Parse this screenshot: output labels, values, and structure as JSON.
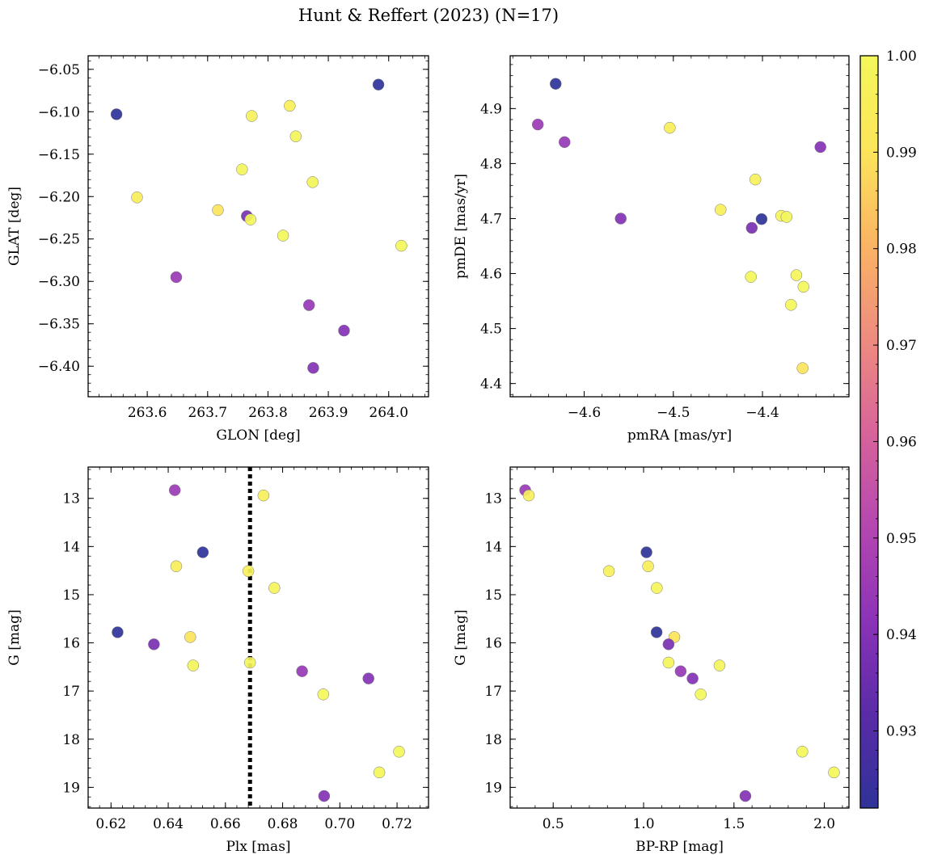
{
  "figure": {
    "title": "Hunt & Reffert (2023) (N=17)"
  },
  "colorbar": {
    "min": 0.922,
    "max": 1.0,
    "ticks": [
      0.93,
      0.94,
      0.95,
      0.96,
      0.97,
      0.98,
      0.99,
      1.0
    ],
    "tick_labels": [
      "0.93",
      "0.94",
      "0.95",
      "0.96",
      "0.97",
      "0.98",
      "0.99",
      "1.00"
    ],
    "colormap": "plasma",
    "colormap_stops": [
      "#2e3399",
      "#5a2ba8",
      "#8b33b8",
      "#b547b0",
      "#d8649a",
      "#ee8c7f",
      "#fbb463",
      "#fce55a",
      "#f3f75a"
    ]
  },
  "stars": {
    "prob": [
      0.922,
      0.922,
      0.99,
      0.945,
      0.944,
      0.94,
      0.94,
      0.938,
      0.995,
      0.996,
      0.997,
      0.998,
      0.999,
      0.999,
      1.0,
      1.0,
      1.0
    ],
    "glon": [
      263.549,
      263.983,
      263.717,
      263.648,
      263.868,
      263.926,
      263.875,
      263.765,
      263.583,
      263.836,
      263.773,
      263.846,
      263.757,
      263.874,
      263.771,
      263.825,
      264.021
    ],
    "glat": [
      -6.103,
      -6.068,
      -6.216,
      -6.295,
      -6.328,
      -6.358,
      -6.402,
      -6.223,
      -6.201,
      -6.093,
      -6.105,
      -6.129,
      -6.168,
      -6.183,
      -6.227,
      -6.246,
      -6.258
    ],
    "pmra": [
      -4.632,
      -4.401,
      -4.355,
      -4.652,
      -4.622,
      -4.559,
      -4.335,
      -4.412,
      -4.504,
      -4.447,
      -4.408,
      -4.379,
      -4.373,
      -4.362,
      -4.368,
      -4.354,
      -4.413
    ],
    "pmde": [
      4.945,
      4.699,
      4.428,
      4.871,
      4.839,
      4.7,
      4.83,
      4.683,
      4.865,
      4.716,
      4.771,
      4.705,
      4.703,
      4.597,
      4.543,
      4.576,
      4.594
    ],
    "plx": [
      0.6521,
      0.6223,
      0.6477,
      0.6423,
      0.6868,
      0.71,
      0.6945,
      0.635,
      0.6428,
      0.6733,
      0.668,
      0.6771,
      0.6487,
      0.6686,
      0.6942,
      0.7138,
      0.7207
    ],
    "gmag": [
      14.12,
      15.78,
      15.88,
      12.83,
      16.59,
      16.74,
      19.18,
      16.03,
      14.41,
      12.94,
      14.51,
      14.86,
      16.47,
      16.41,
      17.07,
      18.69,
      18.26
    ],
    "bprp": [
      1.016,
      1.072,
      1.17,
      0.345,
      1.205,
      1.271,
      1.563,
      1.138,
      1.025,
      0.365,
      0.808,
      1.073,
      1.42,
      1.138,
      1.316,
      2.053,
      1.878
    ]
  },
  "chart_data": [
    {
      "type": "scatter",
      "id": "glon_glat",
      "xkey": "glon",
      "ykey": "glat",
      "xlabel": "GLON [deg]",
      "ylabel": "GLAT [deg]",
      "xlim": [
        263.502,
        264.066
      ],
      "ylim": [
        -6.436,
        -6.034
      ],
      "xticks": [
        263.6,
        263.7,
        263.8,
        263.9,
        264.0
      ],
      "xtick_labels": [
        "263.6",
        "263.7",
        "263.8",
        "263.9",
        "264.0"
      ],
      "yticks": [
        -6.05,
        -6.1,
        -6.15,
        -6.2,
        -6.25,
        -6.3,
        -6.35,
        -6.4
      ],
      "ytick_labels": [
        "−6.05",
        "−6.10",
        "−6.15",
        "−6.20",
        "−6.25",
        "−6.30",
        "−6.35",
        "−6.40"
      ],
      "yinvert": false
    },
    {
      "type": "scatter",
      "id": "pmra_pmde",
      "xkey": "pmra",
      "ykey": "pmde",
      "xlabel": "pmRA [mas/yr]",
      "ylabel": "pmDE [mas/yr]",
      "xlim": [
        -4.683,
        -4.303
      ],
      "ylim": [
        4.376,
        4.996
      ],
      "xticks": [
        -4.6,
        -4.5,
        -4.4
      ],
      "xtick_labels": [
        "−4.6",
        "−4.5",
        "−4.4"
      ],
      "yticks": [
        4.4,
        4.5,
        4.6,
        4.7,
        4.8,
        4.9
      ],
      "ytick_labels": [
        "4.4",
        "4.5",
        "4.6",
        "4.7",
        "4.8",
        "4.9"
      ],
      "yinvert": false
    },
    {
      "type": "scatter",
      "id": "plx_g",
      "xkey": "plx",
      "ykey": "gmag",
      "xlabel": "Plx [mas]",
      "ylabel": "G [mag]",
      "xlim": [
        0.612,
        0.731
      ],
      "ylim": [
        12.35,
        19.43
      ],
      "xticks": [
        0.62,
        0.64,
        0.66,
        0.68,
        0.7,
        0.72
      ],
      "xtick_labels": [
        "0.62",
        "0.64",
        "0.66",
        "0.68",
        "0.70",
        "0.72"
      ],
      "yticks": [
        13,
        14,
        15,
        16,
        17,
        18,
        19
      ],
      "ytick_labels": [
        "13",
        "14",
        "15",
        "16",
        "17",
        "18",
        "19"
      ],
      "yinvert": true,
      "vline": 0.6686
    },
    {
      "type": "scatter",
      "id": "bprp_g",
      "xkey": "bprp",
      "ykey": "gmag",
      "xlabel": "BP-RP [mag]",
      "ylabel": "G [mag]",
      "xlim": [
        0.262,
        2.136
      ],
      "ylim": [
        12.35,
        19.43
      ],
      "xticks": [
        0.5,
        1.0,
        1.5,
        2.0
      ],
      "xtick_labels": [
        "0.5",
        "1.0",
        "1.5",
        "2.0"
      ],
      "yticks": [
        13,
        14,
        15,
        16,
        17,
        18,
        19
      ],
      "ytick_labels": [
        "13",
        "14",
        "15",
        "16",
        "17",
        "18",
        "19"
      ],
      "yinvert": true
    }
  ]
}
